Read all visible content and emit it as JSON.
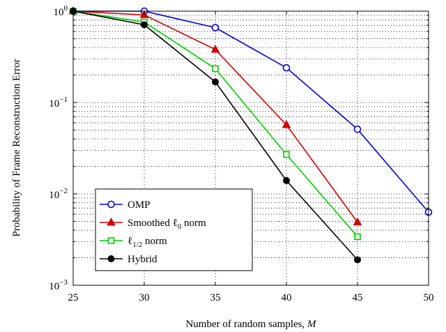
{
  "chart_data": {
    "type": "line",
    "xlabel": "Number of random samples, M",
    "ylabel": "Probability of Frame Reconstruction Error",
    "x_ticks": [
      "25",
      "30",
      "35",
      "40",
      "45",
      "50"
    ],
    "y_ticks": [
      {
        "base": "10",
        "exp": "0"
      },
      {
        "base": "10",
        "exp": "−1"
      },
      {
        "base": "10",
        "exp": "−2"
      },
      {
        "base": "10",
        "exp": "−3"
      }
    ],
    "xlim": [
      25,
      50
    ],
    "ylim": [
      0.001,
      1
    ],
    "yscale": "log",
    "grid": true,
    "legend_position": "bottom-left",
    "series": [
      {
        "name": "OMP",
        "color": "#0000cc",
        "marker": "circle-open",
        "x": [
          25,
          30,
          35,
          40,
          45,
          50
        ],
        "y": [
          1.0,
          1.0,
          0.66,
          0.24,
          0.051,
          0.0063
        ]
      },
      {
        "name": "Smoothed ℓ₀ norm",
        "color": "#cc0000",
        "marker": "triangle-filled",
        "x": [
          25,
          30,
          35,
          40,
          45
        ],
        "y": [
          1.0,
          0.91,
          0.38,
          0.057,
          0.0049
        ]
      },
      {
        "name": "ℓ₁/₂ norm",
        "color": "#00cc00",
        "marker": "square-open",
        "x": [
          25,
          30,
          35,
          40,
          45
        ],
        "y": [
          1.0,
          0.76,
          0.235,
          0.027,
          0.0034
        ]
      },
      {
        "name": "Hybrid",
        "color": "#000000",
        "marker": "circle-filled",
        "x": [
          25,
          30,
          35,
          40,
          45
        ],
        "y": [
          1.0,
          0.71,
          0.168,
          0.014,
          0.0019
        ]
      }
    ]
  }
}
